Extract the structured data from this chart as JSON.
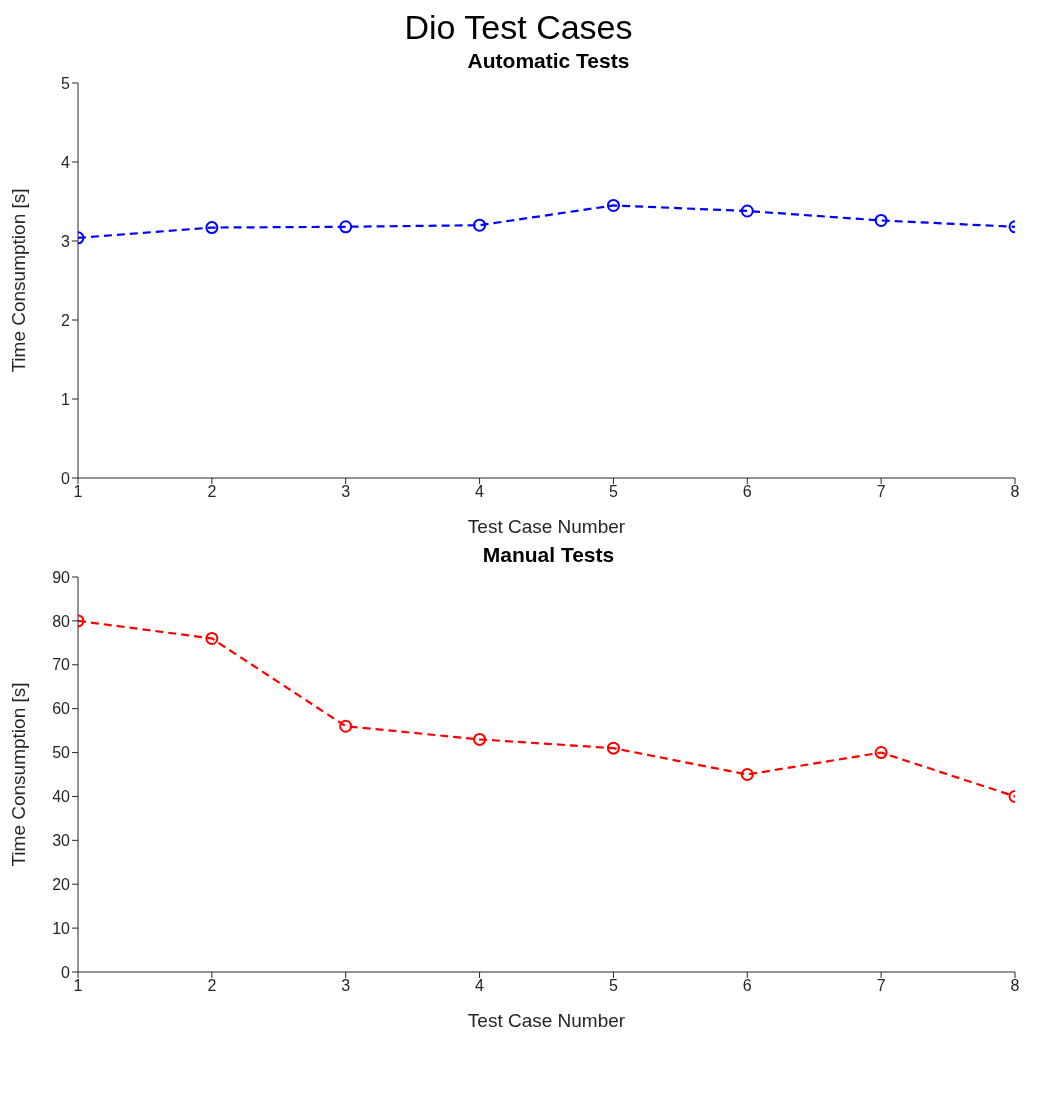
{
  "chart_data": [
    {
      "type": "line",
      "annotations": [
        "Dio Test Cases"
      ],
      "title": "Automatic Tests",
      "xlabel": "Test Case Number",
      "ylabel": "Time Consumption [s]",
      "x": [
        1,
        2,
        3,
        4,
        5,
        6,
        7,
        8
      ],
      "series": [
        {
          "color": "#0000ff",
          "values": [
            3.04,
            3.17,
            3.18,
            3.2,
            3.45,
            3.38,
            3.26,
            3.18
          ]
        }
      ],
      "xlim": [
        1,
        8
      ],
      "xticks": [
        1,
        2,
        3,
        4,
        5,
        6,
        7,
        8
      ],
      "ylim": [
        0,
        5
      ],
      "yticks": [
        0,
        1,
        2,
        3,
        4,
        5
      ],
      "marker": "circle",
      "line_style": "dashed"
    },
    {
      "type": "line",
      "title": "Manual Tests",
      "xlabel": "Test Case Number",
      "ylabel": "Time Consumption [s]",
      "x": [
        1,
        2,
        3,
        4,
        5,
        6,
        7,
        8
      ],
      "series": [
        {
          "color": "#ff0000",
          "values": [
            80,
            76,
            56,
            53,
            51,
            45,
            50,
            40
          ]
        }
      ],
      "xlim": [
        1,
        8
      ],
      "xticks": [
        1,
        2,
        3,
        4,
        5,
        6,
        7,
        8
      ],
      "ylim": [
        0,
        90
      ],
      "yticks": [
        0,
        10,
        20,
        30,
        40,
        50,
        60,
        70,
        80,
        90
      ],
      "marker": "circle",
      "line_style": "dashed"
    }
  ]
}
